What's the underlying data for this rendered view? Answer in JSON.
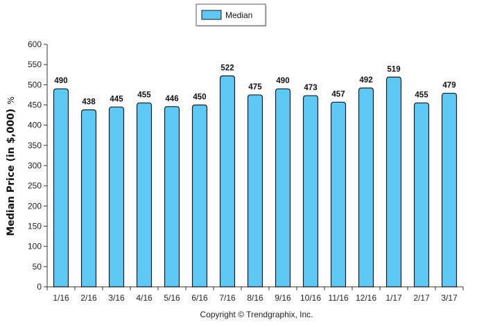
{
  "chart_data": {
    "type": "bar",
    "categories": [
      "1/16",
      "2/16",
      "3/16",
      "4/16",
      "5/16",
      "6/16",
      "7/16",
      "8/16",
      "9/16",
      "10/16",
      "11/16",
      "12/16",
      "1/17",
      "2/17",
      "3/17"
    ],
    "series": [
      {
        "name": "Median",
        "values": [
          490,
          438,
          445,
          455,
          446,
          450,
          522,
          475,
          490,
          473,
          457,
          492,
          519,
          455,
          479
        ]
      }
    ],
    "ylabel": "Median Price (in $,000)",
    "ylabel_suffix": "%",
    "xlabel": "",
    "ylim": [
      0,
      600
    ],
    "yticks": [
      0,
      50,
      100,
      150,
      200,
      250,
      300,
      350,
      400,
      450,
      500,
      550,
      600
    ],
    "data_labels": true,
    "legend_position": "top-center",
    "grid": false,
    "bar_color": "#5bc8f5",
    "bar_edge_color": "#1a1a1a"
  },
  "footer": {
    "copyright": "Copyright © Trendgraphix, Inc."
  }
}
